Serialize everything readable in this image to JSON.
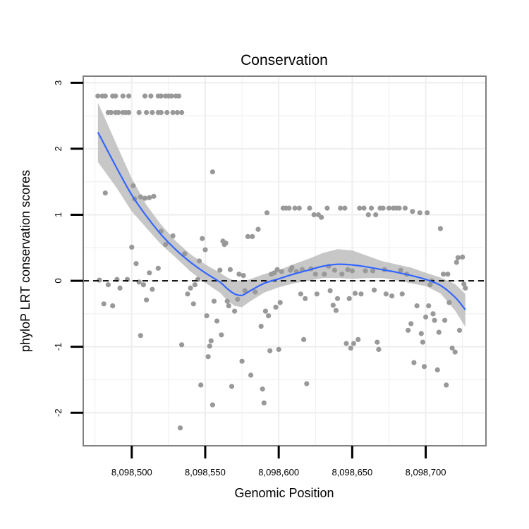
{
  "chart_data": {
    "type": "scatter",
    "title": "Conservation",
    "xlabel": "Genomic Position",
    "ylabel": "phyloP LRT conservation scores",
    "xlim": [
      8098467,
      8098741
    ],
    "ylim": [
      -2.5,
      3.1
    ],
    "x_ticks": [
      8098500,
      8098550,
      8098600,
      8098650,
      8098700
    ],
    "x_tick_labels": [
      "8,098,500",
      "8,098,550",
      "8,098,600",
      "8,098,650",
      "8,098,700"
    ],
    "y_ticks": [
      -2,
      -1,
      0,
      1,
      2,
      3
    ],
    "y_tick_labels": [
      "-2",
      "-1",
      "0",
      "1",
      "2",
      "3"
    ],
    "grid": true,
    "reference_line": {
      "y": 0,
      "style": "dashed"
    },
    "colors": {
      "points": "#999999",
      "smooth": "#3366ff",
      "band": "#bdbdbd",
      "grid": "#eeeeee",
      "frame": "#808080"
    },
    "points": [
      [
        8098477,
        2.8
      ],
      [
        8098480,
        2.8
      ],
      [
        8098482,
        2.8
      ],
      [
        8098487,
        2.8
      ],
      [
        8098489,
        2.8
      ],
      [
        8098494,
        2.8
      ],
      [
        8098498,
        2.8
      ],
      [
        8098509,
        2.8
      ],
      [
        8098513,
        2.8
      ],
      [
        8098518,
        2.8
      ],
      [
        8098520,
        2.8
      ],
      [
        8098523,
        2.8
      ],
      [
        8098525,
        2.8
      ],
      [
        8098527,
        2.8
      ],
      [
        8098530,
        2.8
      ],
      [
        8098532,
        2.8
      ],
      [
        8098484,
        2.55
      ],
      [
        8098486,
        2.55
      ],
      [
        8098489,
        2.55
      ],
      [
        8098491,
        2.55
      ],
      [
        8098494,
        2.55
      ],
      [
        8098496,
        2.55
      ],
      [
        8098498,
        2.55
      ],
      [
        8098505,
        2.55
      ],
      [
        8098510,
        2.55
      ],
      [
        8098514,
        2.55
      ],
      [
        8098518,
        2.55
      ],
      [
        8098520,
        2.55
      ],
      [
        8098524,
        2.55
      ],
      [
        8098528,
        2.55
      ],
      [
        8098531,
        2.55
      ],
      [
        8098534,
        2.55
      ],
      [
        8098482,
        1.33
      ],
      [
        8098501,
        1.44
      ],
      [
        8098502,
        1.24
      ],
      [
        8098506,
        1.27
      ],
      [
        8098509,
        1.25
      ],
      [
        8098512,
        1.26
      ],
      [
        8098515,
        1.28
      ],
      [
        8098555,
        1.65
      ],
      [
        8098478,
        0.01
      ],
      [
        8098481,
        -0.35
      ],
      [
        8098484,
        -0.06
      ],
      [
        8098487,
        -0.38
      ],
      [
        8098490,
        0.02
      ],
      [
        8098492,
        -0.11
      ],
      [
        8098497,
        0.02
      ],
      [
        8098500,
        0.51
      ],
      [
        8098503,
        0.26
      ],
      [
        8098505,
        -0.02
      ],
      [
        8098506,
        -0.83
      ],
      [
        8098508,
        -0.06
      ],
      [
        8098510,
        -0.29
      ],
      [
        8098512,
        0.12
      ],
      [
        8098514,
        -0.13
      ],
      [
        8098518,
        0.19
      ],
      [
        8098520,
        0.75
      ],
      [
        8098523,
        0.55
      ],
      [
        8098528,
        0.68
      ],
      [
        8098533,
        -2.23
      ],
      [
        8098534,
        -0.97
      ],
      [
        8098536,
        0.41
      ],
      [
        8098538,
        -0.2
      ],
      [
        8098540,
        -0.11
      ],
      [
        8098542,
        -0.35
      ],
      [
        8098543,
        -0.06
      ],
      [
        8098545,
        0.02
      ],
      [
        8098546,
        0.3
      ],
      [
        8098547,
        -1.58
      ],
      [
        8098548,
        0.64
      ],
      [
        8098550,
        0.47
      ],
      [
        8098551,
        -0.53
      ],
      [
        8098552,
        -1.15
      ],
      [
        8098553,
        -0.99
      ],
      [
        8098554,
        -0.91
      ],
      [
        8098555,
        -1.88
      ],
      [
        8098556,
        -0.31
      ],
      [
        8098558,
        -0.61
      ],
      [
        8098560,
        0.16
      ],
      [
        8098561,
        -0.82
      ],
      [
        8098562,
        0.6
      ],
      [
        8098563,
        0.55
      ],
      [
        8098564,
        0.57
      ],
      [
        8098565,
        -0.31
      ],
      [
        8098566,
        -0.38
      ],
      [
        8098567,
        0.17
      ],
      [
        8098568,
        -1.6
      ],
      [
        8098570,
        -0.46
      ],
      [
        8098572,
        -0.28
      ],
      [
        8098573,
        0.1
      ],
      [
        8098575,
        -1.22
      ],
      [
        8098576,
        0.08
      ],
      [
        8098577,
        -0.15
      ],
      [
        8098579,
        0.67
      ],
      [
        8098581,
        -1.43
      ],
      [
        8098582,
        0.67
      ],
      [
        8098584,
        -0.17
      ],
      [
        8098586,
        0.78
      ],
      [
        8098588,
        -0.69
      ],
      [
        8098589,
        -1.64
      ],
      [
        8098590,
        -1.85
      ],
      [
        8098591,
        -0.46
      ],
      [
        8098592,
        1.03
      ],
      [
        8098593,
        -0.53
      ],
      [
        8098594,
        -1.06
      ],
      [
        8098595,
        0.1
      ],
      [
        8098597,
        0.12
      ],
      [
        8098598,
        -0.4
      ],
      [
        8098599,
        0.17
      ],
      [
        8098600,
        -1.04
      ],
      [
        8098601,
        -0.33
      ],
      [
        8098602,
        0.14
      ],
      [
        8098603,
        1.1
      ],
      [
        8098605,
        1.1
      ],
      [
        8098607,
        1.1
      ],
      [
        8098608,
        0.16
      ],
      [
        8098609,
        0.2
      ],
      [
        8098611,
        1.1
      ],
      [
        8098612,
        0.14
      ],
      [
        8098614,
        1.1
      ],
      [
        8098615,
        -0.2
      ],
      [
        8098616,
        0.17
      ],
      [
        8098617,
        -0.89
      ],
      [
        8098618,
        -0.27
      ],
      [
        8098619,
        -1.56
      ],
      [
        8098621,
        1.1
      ],
      [
        8098622,
        0.18
      ],
      [
        8098624,
        1.0
      ],
      [
        8098625,
        0.1
      ],
      [
        8098626,
        -0.2
      ],
      [
        8098627,
        1.0
      ],
      [
        8098629,
        0.96
      ],
      [
        8098631,
        0.1
      ],
      [
        8098633,
        1.1
      ],
      [
        8098634,
        0.22
      ],
      [
        8098635,
        -0.15
      ],
      [
        8098637,
        -0.37
      ],
      [
        8098638,
        0.16
      ],
      [
        8098639,
        -0.45
      ],
      [
        8098640,
        -0.27
      ],
      [
        8098642,
        1.1
      ],
      [
        8098643,
        0.1
      ],
      [
        8098645,
        1.1
      ],
      [
        8098646,
        -0.95
      ],
      [
        8098647,
        0.17
      ],
      [
        8098648,
        -0.27
      ],
      [
        8098649,
        -1.02
      ],
      [
        8098650,
        0.15
      ],
      [
        8098651,
        -0.95
      ],
      [
        8098652,
        -0.19
      ],
      [
        8098654,
        -0.89
      ],
      [
        8098655,
        1.1
      ],
      [
        8098656,
        -0.2
      ],
      [
        8098658,
        1.1
      ],
      [
        8098659,
        0.15
      ],
      [
        8098661,
        1.0
      ],
      [
        8098663,
        1.1
      ],
      [
        8098664,
        0.15
      ],
      [
        8098665,
        -0.14
      ],
      [
        8098666,
        1.0
      ],
      [
        8098667,
        -0.93
      ],
      [
        8098668,
        -1.04
      ],
      [
        8098669,
        1.1
      ],
      [
        8098671,
        1.1
      ],
      [
        8098672,
        0.17
      ],
      [
        8098673,
        -0.2
      ],
      [
        8098675,
        1.1
      ],
      [
        8098677,
        -0.23
      ],
      [
        8098678,
        1.1
      ],
      [
        8098680,
        1.1
      ],
      [
        8098682,
        1.1
      ],
      [
        8098683,
        0.16
      ],
      [
        8098684,
        -0.2
      ],
      [
        8098686,
        1.1
      ],
      [
        8098687,
        0.1
      ],
      [
        8098688,
        -0.75
      ],
      [
        8098690,
        -0.65
      ],
      [
        8098691,
        1.05
      ],
      [
        8098692,
        -1.24
      ],
      [
        8098694,
        -0.38
      ],
      [
        8098696,
        1.03
      ],
      [
        8098697,
        -0.8
      ],
      [
        8098698,
        -0.93
      ],
      [
        8098699,
        -1.3
      ],
      [
        8098700,
        -0.55
      ],
      [
        8098701,
        1.03
      ],
      [
        8098702,
        -0.38
      ],
      [
        8098703,
        -0.06
      ],
      [
        8098704,
        0.0
      ],
      [
        8098705,
        -0.5
      ],
      [
        8098706,
        -0.6
      ],
      [
        8098708,
        -1.35
      ],
      [
        8098709,
        -0.78
      ],
      [
        8098710,
        0.79
      ],
      [
        8098712,
        0.1
      ],
      [
        8098713,
        -0.6
      ],
      [
        8098714,
        -1.58
      ],
      [
        8098715,
        0.1
      ],
      [
        8098716,
        -0.33
      ],
      [
        8098718,
        -1.02
      ],
      [
        8098720,
        -1.08
      ],
      [
        8098721,
        0.28
      ],
      [
        8098722,
        0.35
      ],
      [
        8098723,
        -0.75
      ],
      [
        8098725,
        0.36
      ],
      [
        8098726,
        -0.05
      ],
      [
        8098727,
        -0.11
      ]
    ],
    "smooth": [
      [
        8098477,
        2.25
      ],
      [
        8098490,
        1.7
      ],
      [
        8098500,
        1.3
      ],
      [
        8098510,
        0.98
      ],
      [
        8098520,
        0.7
      ],
      [
        8098530,
        0.47
      ],
      [
        8098540,
        0.28
      ],
      [
        8098550,
        0.12
      ],
      [
        8098560,
        -0.02
      ],
      [
        8098565,
        -0.12
      ],
      [
        8098570,
        -0.2
      ],
      [
        8098575,
        -0.22
      ],
      [
        8098580,
        -0.16
      ],
      [
        8098590,
        -0.04
      ],
      [
        8098600,
        0.03
      ],
      [
        8098610,
        0.1
      ],
      [
        8098620,
        0.16
      ],
      [
        8098630,
        0.22
      ],
      [
        8098640,
        0.25
      ],
      [
        8098650,
        0.24
      ],
      [
        8098660,
        0.21
      ],
      [
        8098670,
        0.17
      ],
      [
        8098680,
        0.13
      ],
      [
        8098690,
        0.08
      ],
      [
        8098700,
        0.02
      ],
      [
        8098710,
        -0.07
      ],
      [
        8098720,
        -0.25
      ],
      [
        8098727,
        -0.44
      ]
    ],
    "band": [
      [
        8098477,
        2.7,
        1.8
      ],
      [
        8098490,
        2.05,
        1.4
      ],
      [
        8098500,
        1.55,
        1.05
      ],
      [
        8098510,
        1.15,
        0.8
      ],
      [
        8098520,
        0.85,
        0.55
      ],
      [
        8098530,
        0.6,
        0.35
      ],
      [
        8098540,
        0.4,
        0.14
      ],
      [
        8098550,
        0.25,
        -0.03
      ],
      [
        8098560,
        0.12,
        -0.18
      ],
      [
        8098565,
        0.05,
        -0.3
      ],
      [
        8098570,
        0.0,
        -0.38
      ],
      [
        8098575,
        0.0,
        -0.4
      ],
      [
        8098580,
        0.02,
        -0.32
      ],
      [
        8098590,
        0.1,
        -0.18
      ],
      [
        8098600,
        0.16,
        -0.1
      ],
      [
        8098610,
        0.25,
        -0.04
      ],
      [
        8098620,
        0.33,
        0.0
      ],
      [
        8098630,
        0.42,
        0.04
      ],
      [
        8098640,
        0.48,
        0.04
      ],
      [
        8098650,
        0.46,
        0.03
      ],
      [
        8098660,
        0.38,
        0.04
      ],
      [
        8098670,
        0.3,
        0.04
      ],
      [
        8098680,
        0.25,
        0.01
      ],
      [
        8098690,
        0.2,
        -0.04
      ],
      [
        8098700,
        0.12,
        -0.08
      ],
      [
        8098710,
        0.05,
        -0.19
      ],
      [
        8098720,
        -0.05,
        -0.45
      ],
      [
        8098727,
        -0.2,
        -0.7
      ]
    ]
  }
}
